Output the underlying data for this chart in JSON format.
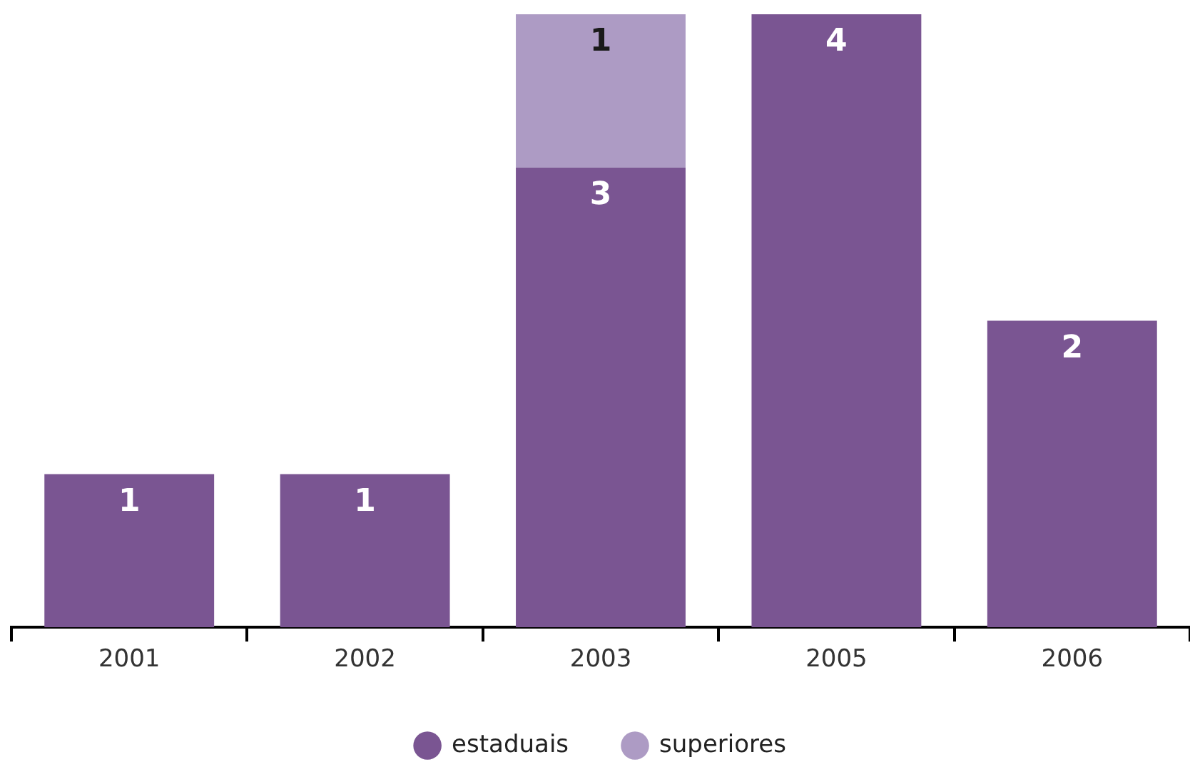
{
  "chart_data": {
    "type": "bar",
    "stacked": true,
    "categories": [
      "2001",
      "2002",
      "2003",
      "2005",
      "2006"
    ],
    "series": [
      {
        "name": "estaduais",
        "color": "#7a5592",
        "values": [
          1,
          1,
          3,
          4,
          2
        ]
      },
      {
        "name": "superiores",
        "color": "#ad9bc4",
        "values": [
          null,
          null,
          1,
          null,
          null
        ]
      }
    ],
    "data_labels": true,
    "grid": false,
    "legend": "bottom"
  }
}
